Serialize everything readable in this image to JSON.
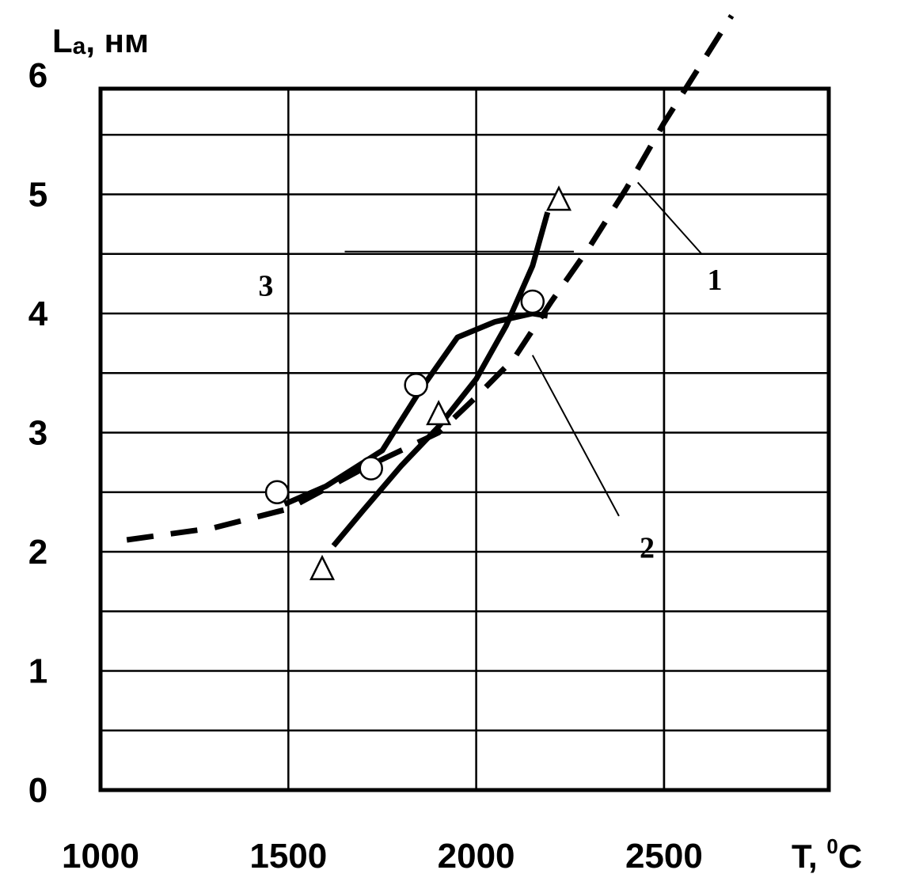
{
  "chart_data": {
    "type": "line",
    "ylabel": "L",
    "ylabel_sub": "a",
    "ylabel_unit": ", нм",
    "xlabel": "T, ",
    "xlabel_sup": "0",
    "xlabel_unit": "C",
    "xlim": [
      1000,
      2900
    ],
    "ylim": [
      0,
      6.55
    ],
    "x_ticks": [
      1000,
      1500,
      2000,
      2500
    ],
    "y_ticks": [
      0,
      1,
      2,
      3,
      4,
      5,
      6
    ],
    "grid": true,
    "series": [
      {
        "name": "1",
        "style": "dashed",
        "points": [
          [
            1070,
            2.1
          ],
          [
            1300,
            2.2
          ],
          [
            1500,
            2.36
          ],
          [
            1700,
            2.7
          ],
          [
            1900,
            3.0
          ],
          [
            2000,
            3.3
          ],
          [
            2100,
            3.62
          ],
          [
            2200,
            4.1
          ],
          [
            2300,
            4.55
          ],
          [
            2400,
            5.05
          ],
          [
            2500,
            5.6
          ],
          [
            2600,
            6.1
          ],
          [
            2680,
            6.5
          ]
        ]
      },
      {
        "name": "2",
        "style": "solid",
        "marker": "triangle",
        "points": [
          [
            1620,
            2.05
          ],
          [
            1700,
            2.35
          ],
          [
            1800,
            2.72
          ],
          [
            1900,
            3.05
          ],
          [
            2000,
            3.45
          ],
          [
            2080,
            3.9
          ],
          [
            2150,
            4.4
          ],
          [
            2190,
            4.85
          ]
        ],
        "markers": [
          [
            1590,
            1.85
          ],
          [
            1900,
            3.15
          ],
          [
            2220,
            4.95
          ]
        ]
      },
      {
        "name": "3",
        "style": "solid",
        "marker": "circle",
        "points": [
          [
            1490,
            2.4
          ],
          [
            1600,
            2.55
          ],
          [
            1750,
            2.85
          ],
          [
            1850,
            3.35
          ],
          [
            1950,
            3.8
          ],
          [
            2050,
            3.93
          ],
          [
            2150,
            4.0
          ],
          [
            2190,
            3.98
          ]
        ],
        "markers": [
          [
            1470,
            2.5
          ],
          [
            1720,
            2.7
          ],
          [
            1840,
            3.4
          ],
          [
            2150,
            4.1
          ]
        ]
      }
    ],
    "callouts": [
      {
        "label": "1",
        "text_at": [
          2615,
          4.2
        ],
        "leader_from": [
          2600,
          4.5
        ],
        "leader_to": [
          2430,
          5.1
        ]
      },
      {
        "label": "2",
        "text_at": [
          2435,
          1.95
        ],
        "leader_from": [
          2380,
          2.3
        ],
        "leader_to": [
          2150,
          3.65
        ]
      },
      {
        "label": "3",
        "text_at": [
          1420,
          4.15
        ],
        "leader_from": [
          1650,
          4.52
        ],
        "leader_to": [
          2260,
          4.52
        ]
      }
    ]
  }
}
